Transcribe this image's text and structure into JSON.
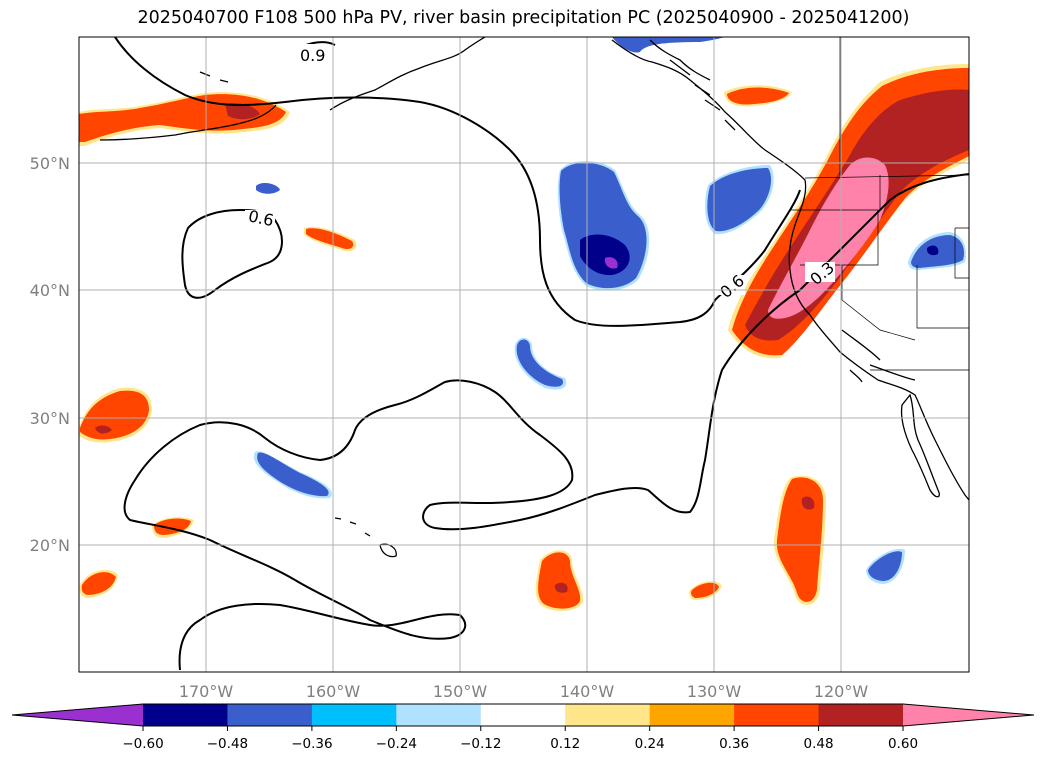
{
  "title": "2025040700 F108 500 hPa PV, river basin precipitation PC (2025040900 - 2025041200)",
  "lat_labels": [
    "50°N",
    "40°N",
    "30°N",
    "20°N"
  ],
  "lon_labels": [
    "170°W",
    "160°W",
    "150°W",
    "140°W",
    "130°W",
    "120°W"
  ],
  "contour_labels": [
    "0.9",
    "0.6",
    "0.6",
    "0.3"
  ],
  "colorbar": {
    "colors": [
      "#9b30d0",
      "#00008b",
      "#3a5fcd",
      "#00bfff",
      "#b0e2ff",
      "#ffffff",
      "#ffe68a",
      "#ffa500",
      "#ff4500",
      "#b22222",
      "#ff82ab"
    ],
    "tick_labels": [
      "−0.60",
      "−0.48",
      "−0.36",
      "−0.24",
      "−0.12",
      "0.12",
      "0.24",
      "0.36",
      "0.48",
      "0.60"
    ]
  },
  "legend_colors": {
    "land_outline": "#000000",
    "gridline": "#b0b0b0"
  }
}
